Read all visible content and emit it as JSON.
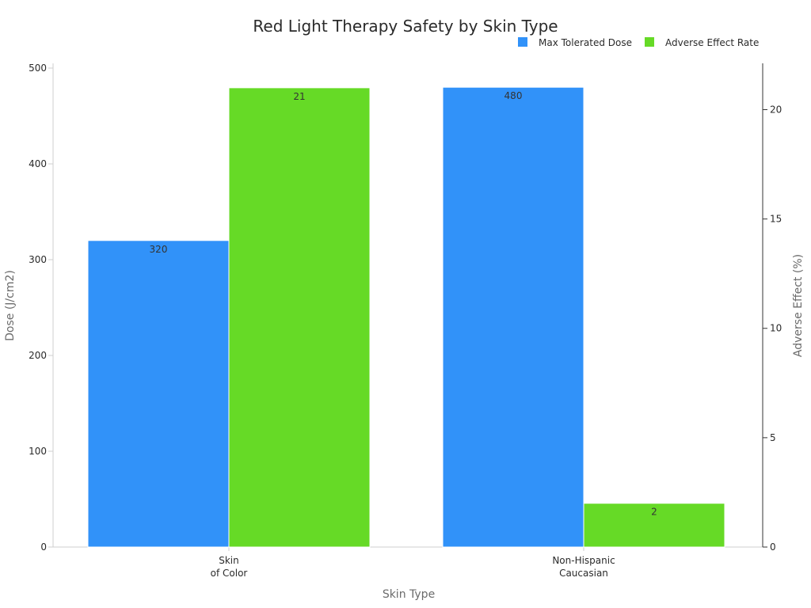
{
  "chart_data": {
    "type": "bar",
    "title": "Red Light Therapy Safety by Skin Type",
    "xlabel": "Skin Type",
    "ylabel": "Dose (J/cm2)",
    "y2label": "Adverse Effect (%)",
    "categories": [
      [
        "Skin",
        "of Color"
      ],
      [
        "Non-Hispanic",
        "Caucasian"
      ]
    ],
    "ylim": [
      0,
      500
    ],
    "y2lim": [
      0,
      21.9
    ],
    "yticks": [
      0,
      100,
      200,
      300,
      400,
      500
    ],
    "y2ticks": [
      0,
      5,
      10,
      15,
      20
    ],
    "series": [
      {
        "name": "Max Tolerated Dose",
        "axis": "left",
        "color": "#3192f9",
        "values": [
          320,
          480
        ],
        "labels": [
          "320",
          "480"
        ]
      },
      {
        "name": "Adverse Effect Rate",
        "axis": "right",
        "color": "#66da26",
        "values": [
          21,
          2
        ],
        "labels": [
          "21",
          "2"
        ]
      }
    ],
    "legend_position": "top-right",
    "grid": false
  }
}
